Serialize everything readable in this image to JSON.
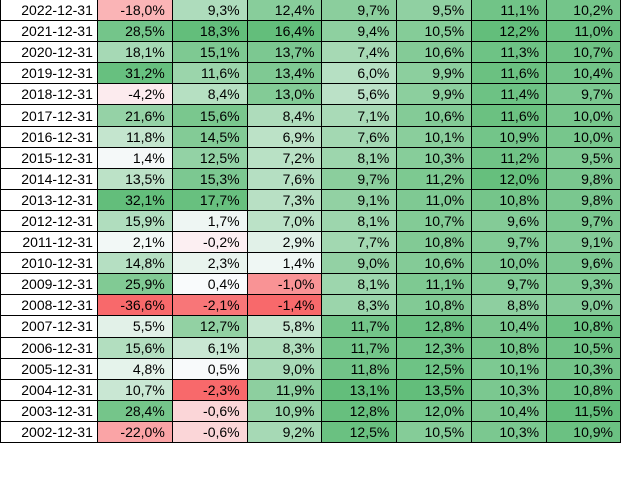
{
  "colors": {
    "positive": "#63be7b",
    "negative": "#f8696b",
    "neutral": "#fcfcff"
  },
  "rows": [
    {
      "date": "2022-12-31",
      "values": [
        "-18,0%",
        "9,3%",
        "12,4%",
        "9,7%",
        "9,5%",
        "11,1%",
        "10,2%"
      ]
    },
    {
      "date": "2021-12-31",
      "values": [
        "28,5%",
        "18,3%",
        "16,4%",
        "9,4%",
        "10,5%",
        "12,2%",
        "11,0%"
      ]
    },
    {
      "date": "2020-12-31",
      "values": [
        "18,1%",
        "15,1%",
        "13,7%",
        "7,4%",
        "10,6%",
        "11,3%",
        "10,7%"
      ]
    },
    {
      "date": "2019-12-31",
      "values": [
        "31,2%",
        "11,6%",
        "13,4%",
        "6,0%",
        "9,9%",
        "11,6%",
        "10,4%"
      ]
    },
    {
      "date": "2018-12-31",
      "values": [
        "-4,2%",
        "8,4%",
        "13,0%",
        "5,6%",
        "9,9%",
        "11,4%",
        "9,7%"
      ]
    },
    {
      "date": "2017-12-31",
      "values": [
        "21,6%",
        "15,6%",
        "8,4%",
        "7,1%",
        "10,6%",
        "11,6%",
        "10,0%"
      ]
    },
    {
      "date": "2016-12-31",
      "values": [
        "11,8%",
        "14,5%",
        "6,9%",
        "7,6%",
        "10,1%",
        "10,9%",
        "10,0%"
      ]
    },
    {
      "date": "2015-12-31",
      "values": [
        "1,4%",
        "12,5%",
        "7,2%",
        "8,1%",
        "10,3%",
        "11,2%",
        "9,5%"
      ]
    },
    {
      "date": "2014-12-31",
      "values": [
        "13,5%",
        "15,3%",
        "7,6%",
        "9,7%",
        "11,2%",
        "12,0%",
        "9,8%"
      ]
    },
    {
      "date": "2013-12-31",
      "values": [
        "32,1%",
        "17,7%",
        "7,3%",
        "9,1%",
        "11,0%",
        "10,8%",
        "9,8%"
      ]
    },
    {
      "date": "2012-12-31",
      "values": [
        "15,9%",
        "1,7%",
        "7,0%",
        "8,1%",
        "10,7%",
        "9,6%",
        "9,7%"
      ]
    },
    {
      "date": "2011-12-31",
      "values": [
        "2,1%",
        "-0,2%",
        "2,9%",
        "7,7%",
        "10,8%",
        "9,7%",
        "9,1%"
      ]
    },
    {
      "date": "2010-12-31",
      "values": [
        "14,8%",
        "2,3%",
        "1,4%",
        "9,0%",
        "10,6%",
        "10,0%",
        "9,6%"
      ]
    },
    {
      "date": "2009-12-31",
      "values": [
        "25,9%",
        "0,4%",
        "-1,0%",
        "8,1%",
        "11,1%",
        "9,7%",
        "9,3%"
      ]
    },
    {
      "date": "2008-12-31",
      "values": [
        "-36,6%",
        "-2,1%",
        "-1,4%",
        "8,3%",
        "10,8%",
        "8,8%",
        "9,0%"
      ]
    },
    {
      "date": "2007-12-31",
      "values": [
        "5,5%",
        "12,7%",
        "5,8%",
        "11,7%",
        "12,8%",
        "10,4%",
        "10,8%"
      ]
    },
    {
      "date": "2006-12-31",
      "values": [
        "15,6%",
        "6,1%",
        "8,3%",
        "11,7%",
        "12,3%",
        "10,8%",
        "10,5%"
      ]
    },
    {
      "date": "2005-12-31",
      "values": [
        "4,8%",
        "0,5%",
        "9,0%",
        "11,8%",
        "12,5%",
        "10,1%",
        "10,3%"
      ]
    },
    {
      "date": "2004-12-31",
      "values": [
        "10,7%",
        "-2,3%",
        "11,9%",
        "13,1%",
        "13,5%",
        "10,3%",
        "10,8%"
      ]
    },
    {
      "date": "2003-12-31",
      "values": [
        "28,4%",
        "-0,6%",
        "10,9%",
        "12,8%",
        "12,0%",
        "10,4%",
        "11,5%"
      ]
    },
    {
      "date": "2002-12-31",
      "values": [
        "-22,0%",
        "-0,6%",
        "9,2%",
        "12,5%",
        "10,5%",
        "10,3%",
        "10,9%"
      ]
    }
  ]
}
